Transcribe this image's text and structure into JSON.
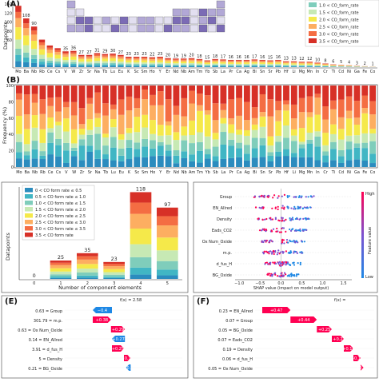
{
  "colors": {
    "bins": [
      "#2b8cbe",
      "#41b6c4",
      "#7fcdbb",
      "#c7e9b4",
      "#f5e94a",
      "#fdae61",
      "#f46d43",
      "#d73027"
    ],
    "shap_low": "#1e88e5",
    "shap_high": "#ff0052",
    "force_pos": "#ff0052",
    "force_neg": "#1e88e5",
    "periodic_cell": "#9a8fc0"
  },
  "panel_labels": {
    "A": "(A)",
    "B": "(B)",
    "E": "(E)",
    "F": "(F)"
  },
  "legend": [
    "0 < CO form rate ≤ 0.5",
    "0.5 < CO form rate ≤ 1.0",
    "1.0 < CO form rate ≤ 1.5",
    "1.5 < CO form rate ≤ 2.0",
    "2.0 < CO form rate ≤ 2.5",
    "2.5 < CO form rate ≤ 3.0",
    "3.0 < CO form rate ≤ 3.5",
    "3.5 < CO form rate"
  ],
  "legend_A": [
    "1.0 < CO_form_rate",
    "1.5 < CO_form_rate",
    "2.0 < CO_form_rate",
    "2.5 < CO_form_rate",
    "3.0 < CO_form_rate",
    "3.5 < CO_form_rate"
  ],
  "chart_data": [
    {
      "id": "A",
      "type": "bar",
      "ylabel": "Datapoints",
      "categories": [
        "Mo",
        "Ba",
        "Nb",
        "Rb",
        "Ce",
        "Cs",
        "V",
        "W",
        "Zr",
        "Sr",
        "Na",
        "Tb",
        "Lu",
        "Eu",
        "K",
        "Sc",
        "Sm",
        "Ho",
        "Y",
        "Er",
        "Nd",
        "Nb",
        "Am",
        "Tm",
        "Yb",
        "Sb",
        "La",
        "Pr",
        "Ca",
        "Ag",
        "Bi",
        "Sn",
        "Sr",
        "Pb",
        "Hf",
        "Li",
        "Mg",
        "Mn",
        "In",
        "Cr",
        "Ti",
        "Cd",
        "Ni",
        "Ga",
        "Fe",
        "Co"
      ],
      "values": [
        136,
        108,
        90,
        61,
        48,
        42,
        35,
        36,
        27,
        27,
        31,
        29,
        30,
        27,
        23,
        23,
        23,
        22,
        23,
        20,
        19,
        19,
        20,
        18,
        15,
        18,
        17,
        16,
        16,
        16,
        17,
        16,
        15,
        16,
        13,
        13,
        12,
        12,
        10,
        8,
        6,
        5,
        4,
        3,
        2,
        1
      ],
      "data_labels": [
        {
          "index": 1,
          "text": "108"
        },
        {
          "index": 2,
          "text": "90"
        },
        {
          "index": 6,
          "text": "35"
        },
        {
          "index": 7,
          "text": "36"
        },
        {
          "index": 8,
          "text": "27"
        },
        {
          "index": 9,
          "text": "27"
        },
        {
          "index": 10,
          "text": "31"
        },
        {
          "index": 11,
          "text": "29"
        },
        {
          "index": 12,
          "text": "30"
        },
        {
          "index": 13,
          "text": "27"
        },
        {
          "index": 14,
          "text": "23"
        },
        {
          "index": 15,
          "text": "23"
        },
        {
          "index": 16,
          "text": "23"
        },
        {
          "index": 17,
          "text": "22"
        },
        {
          "index": 18,
          "text": "23"
        },
        {
          "index": 19,
          "text": "20"
        },
        {
          "index": 20,
          "text": "19"
        },
        {
          "index": 21,
          "text": "19"
        },
        {
          "index": 22,
          "text": "20"
        },
        {
          "index": 23,
          "text": "18"
        },
        {
          "index": 24,
          "text": "15"
        },
        {
          "index": 25,
          "text": "18"
        },
        {
          "index": 26,
          "text": "17"
        },
        {
          "index": 27,
          "text": "16"
        },
        {
          "index": 28,
          "text": "16"
        },
        {
          "index": 29,
          "text": "16"
        },
        {
          "index": 30,
          "text": "17"
        },
        {
          "index": 31,
          "text": "16"
        },
        {
          "index": 32,
          "text": "15"
        },
        {
          "index": 33,
          "text": "16"
        },
        {
          "index": 34,
          "text": "13"
        },
        {
          "index": 35,
          "text": "13"
        },
        {
          "index": 36,
          "text": "12"
        },
        {
          "index": 37,
          "text": "12"
        },
        {
          "index": 38,
          "text": "10"
        },
        {
          "index": 39,
          "text": "8"
        },
        {
          "index": 40,
          "text": "6"
        },
        {
          "index": 41,
          "text": "5"
        },
        {
          "index": 42,
          "text": "4"
        },
        {
          "index": 43,
          "text": "3"
        },
        {
          "index": 44,
          "text": "2"
        },
        {
          "index": 45,
          "text": "1"
        }
      ],
      "yticks": [
        "140",
        "120",
        "100",
        "80",
        "60"
      ],
      "ylim": [
        0,
        140
      ]
    },
    {
      "id": "B",
      "type": "bar",
      "stacked": true,
      "ylabel": "Frequency (%)",
      "yticks": [
        "100",
        "80",
        "60",
        "40",
        "20",
        "0"
      ],
      "ylim": [
        0,
        100
      ],
      "categories": [
        "Mo",
        "Ba",
        "Nb",
        "Rb",
        "Ce",
        "Cs",
        "V",
        "W",
        "Zr",
        "Sr",
        "Na",
        "Tb",
        "Lu",
        "Eu",
        "K",
        "Sc",
        "Sm",
        "Ho",
        "Y",
        "Er",
        "Nd",
        "Nb",
        "Am",
        "Tm",
        "Yb",
        "Sb",
        "La",
        "Pr",
        "Ca",
        "Ag",
        "Bi",
        "Sn",
        "Sr",
        "Pb",
        "Hf",
        "Li",
        "Mg",
        "Mn",
        "In",
        "Cr",
        "Ti",
        "Cd",
        "Ni",
        "Ga",
        "Fe",
        "Co"
      ]
    },
    {
      "id": "C",
      "type": "bar",
      "stacked": true,
      "xlabel": "Number of component elements",
      "ylabel": "Datapoints",
      "categories": [
        "0",
        "1",
        "2",
        "3",
        "4",
        "5"
      ],
      "values": [
        0,
        25,
        35,
        23,
        118,
        97
      ],
      "ylim": [
        0,
        125
      ]
    },
    {
      "id": "D",
      "type": "scatter",
      "xlabel": "SHAP value (impact on model output)",
      "features": [
        "Group",
        "EN_Allred",
        "Density",
        "Eads_CO2",
        "Ox Num_Oxide",
        "m.p.",
        "d_fus_H",
        "BG_Oxide"
      ],
      "xticks": [
        "−1.0",
        "−0.5",
        "0.0",
        "0.5",
        "1.0",
        "1.5"
      ],
      "xlim": [
        -1.1,
        1.7
      ],
      "colorbar": {
        "label": "Feature value",
        "high": "High",
        "low": "Low"
      }
    },
    {
      "id": "E",
      "type": "waterfall",
      "base_label": "f(x) = 2.58",
      "rows": [
        {
          "value": "0.63",
          "feature": "Group",
          "contribution": "−0.4",
          "sign": "neg"
        },
        {
          "value": "301.79",
          "feature": "m.p.",
          "contribution": "+0.38",
          "sign": "pos"
        },
        {
          "value": "0.63",
          "feature": "Ox Num_Oxide",
          "contribution": "+0.29",
          "sign": "pos"
        },
        {
          "value": "0.14",
          "feature": "EN_Allred",
          "contribution": "+0.27",
          "sign": "neg"
        },
        {
          "value": "3.91",
          "feature": "d_fus_H",
          "contribution": "+0.25",
          "sign": "pos"
        },
        {
          "value": "5",
          "feature": "Density",
          "contribution": "+0.14",
          "sign": "pos"
        },
        {
          "value": "0.21",
          "feature": "BG_Oxide",
          "contribution": "+0.1",
          "sign": "neg"
        }
      ]
    },
    {
      "id": "F",
      "type": "waterfall",
      "base_label": "f(x) =",
      "rows": [
        {
          "value": "0.23",
          "feature": "EN_Allred",
          "contribution": "+0.47",
          "sign": "pos"
        },
        {
          "value": "0.07",
          "feature": "Group",
          "contribution": "+0.44",
          "sign": "pos"
        },
        {
          "value": "0.05",
          "feature": "BG_Oxide",
          "contribution": "+0.25",
          "sign": "pos"
        },
        {
          "value": "0.07",
          "feature": "Eads_CO2",
          "contribution": "+0.2",
          "sign": "pos"
        },
        {
          "value": "0.19",
          "feature": "Density",
          "contribution": "+0.16",
          "sign": "pos"
        },
        {
          "value": "0.06",
          "feature": "d_fus_H",
          "contribution": "+0.12",
          "sign": "pos"
        },
        {
          "value": "0.05",
          "feature": "Ox Num_Oxide",
          "contribution": "+0.05",
          "sign": "pos"
        }
      ]
    }
  ]
}
